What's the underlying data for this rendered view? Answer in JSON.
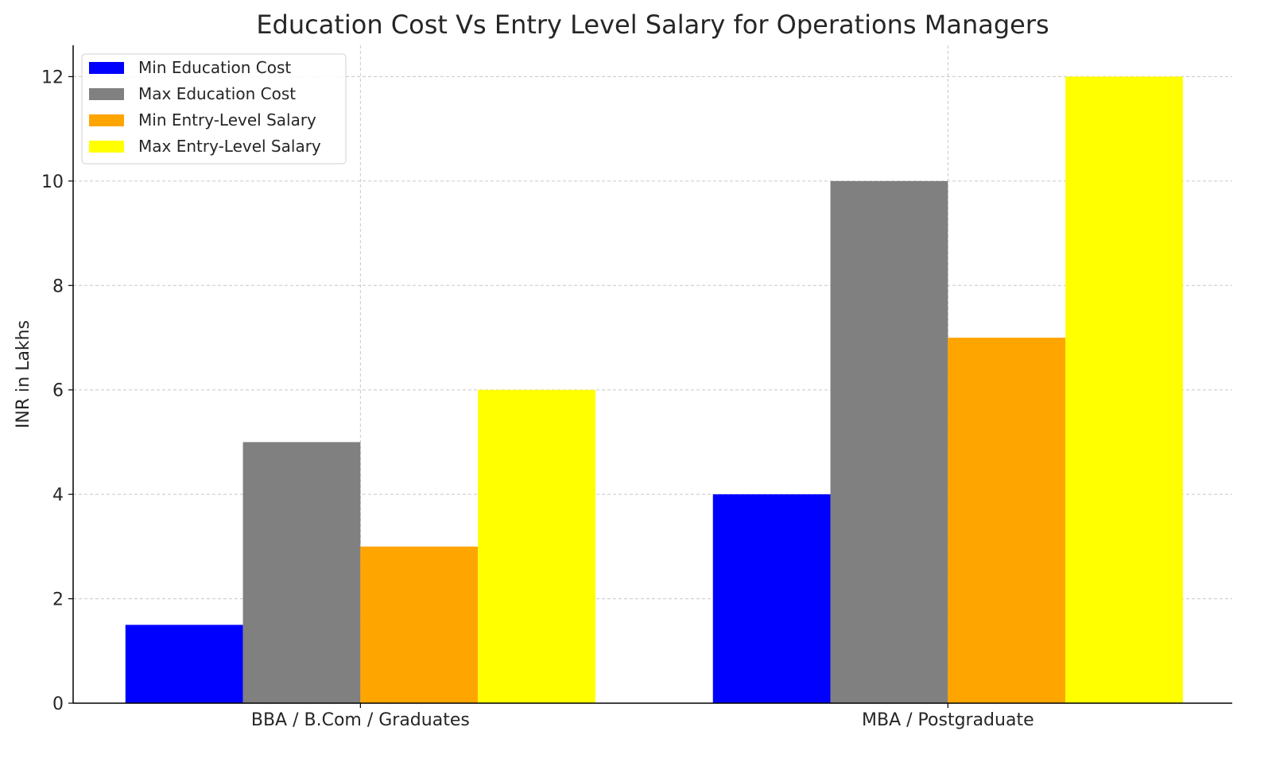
{
  "chart_data": {
    "type": "bar",
    "title": "Education Cost Vs Entry Level Salary for Operations Managers",
    "xlabel": "",
    "ylabel": "INR in Lakhs",
    "categories": [
      "BBA / B.Com / Graduates",
      "MBA / Postgraduate"
    ],
    "series": [
      {
        "name": "Min Education Cost",
        "color": "#0000ff",
        "values": [
          1.5,
          4
        ]
      },
      {
        "name": "Max Education Cost",
        "color": "#808080",
        "values": [
          5,
          10
        ]
      },
      {
        "name": "Min Entry-Level Salary",
        "color": "#ffa500",
        "values": [
          3,
          7
        ]
      },
      {
        "name": "Max Entry-Level Salary",
        "color": "#ffff00",
        "values": [
          6,
          12
        ]
      }
    ],
    "ylim": [
      0,
      12.6
    ],
    "yticks": [
      "0",
      "2",
      "4",
      "6",
      "8",
      "10",
      "12"
    ],
    "grid": true,
    "legend_position": "top-left"
  }
}
